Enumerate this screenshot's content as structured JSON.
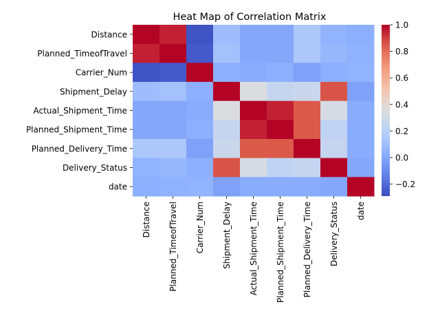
{
  "chart_data": {
    "type": "heatmap",
    "title": "Heat Map of Correlation Matrix",
    "xlabel": "",
    "ylabel": "",
    "labels": [
      "Distance",
      "Planned_TimeofTravel",
      "Carrier_Num",
      "Shipment_Delay",
      "Actual_Shipment_Time",
      "Planned_Shipment_Time",
      "Planned_Delivery_Time",
      "Delivery_Status",
      "date"
    ],
    "matrix": [
      [
        1.0,
        0.95,
        -0.27,
        0.1,
        0.0,
        0.0,
        0.15,
        0.05,
        0.03
      ],
      [
        0.95,
        1.0,
        -0.25,
        0.12,
        0.0,
        0.0,
        0.15,
        0.07,
        0.04
      ],
      [
        -0.27,
        -0.25,
        1.0,
        0.03,
        0.02,
        0.03,
        -0.02,
        0.03,
        0.05
      ],
      [
        0.1,
        0.12,
        0.03,
        1.0,
        0.34,
        0.25,
        0.27,
        0.86,
        -0.02
      ],
      [
        0.0,
        0.0,
        0.02,
        0.34,
        1.0,
        0.95,
        0.85,
        0.32,
        0.02
      ],
      [
        0.0,
        0.0,
        0.03,
        0.25,
        0.95,
        1.0,
        0.85,
        0.23,
        0.02
      ],
      [
        0.15,
        0.15,
        -0.02,
        0.27,
        0.85,
        0.85,
        1.0,
        0.25,
        0.02
      ],
      [
        0.05,
        0.07,
        0.03,
        0.86,
        0.32,
        0.23,
        0.25,
        1.0,
        0.0
      ],
      [
        0.03,
        0.04,
        0.05,
        -0.02,
        0.02,
        0.02,
        0.02,
        0.0,
        1.0
      ]
    ],
    "vmin": -0.29,
    "vmax": 1.0,
    "colormap": "coolwarm",
    "colorbar_ticks": [
      -0.2,
      0.0,
      0.2,
      0.4,
      0.6,
      0.8,
      1.0
    ],
    "colorbar_tick_labels": [
      "−0.2",
      "0.0",
      "0.2",
      "0.4",
      "0.6",
      "0.8",
      "1.0"
    ],
    "grid": false,
    "legend": "colorbar-right"
  }
}
